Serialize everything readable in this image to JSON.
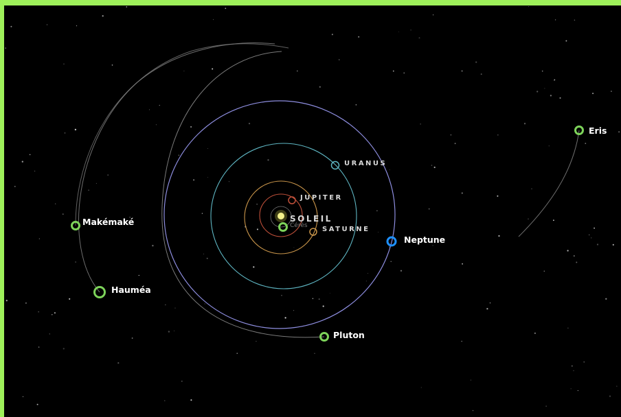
{
  "bodies": [
    {
      "label": "SOLEIL"
    },
    {
      "label": "Cérès"
    },
    {
      "label": "JUPITER"
    },
    {
      "label": "SATURNE"
    },
    {
      "label": "URANUS"
    },
    {
      "label": "Neptune"
    },
    {
      "label": "Pluton"
    },
    {
      "label": "Makémaké"
    },
    {
      "label": "Hauméa"
    },
    {
      "label": "Eris"
    }
  ]
}
